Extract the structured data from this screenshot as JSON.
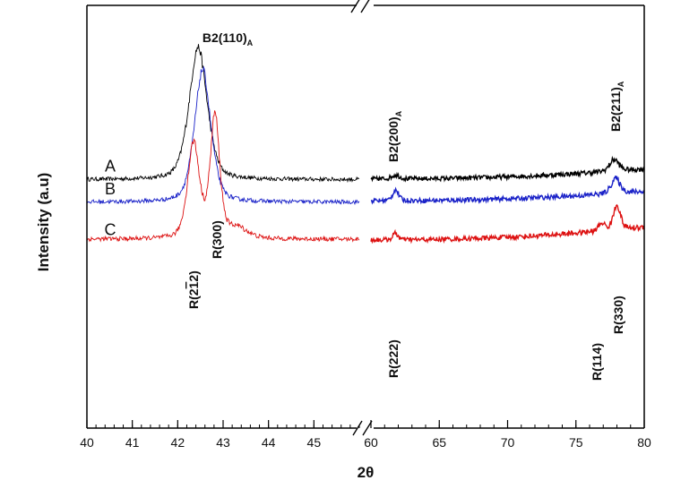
{
  "chart_data": {
    "type": "line",
    "title": "",
    "xlabel": "2θ",
    "ylabel": "Intensity (a.u)",
    "x_axis_break": true,
    "x_segments": [
      {
        "range": [
          40,
          46
        ],
        "ticks": [
          40,
          41,
          42,
          43,
          44,
          45
        ],
        "minor_step": 0.2
      },
      {
        "range": [
          60,
          80
        ],
        "ticks": [
          60,
          65,
          70,
          75,
          80
        ],
        "minor_step": 1
      }
    ],
    "y_ticks_shown": false,
    "series": [
      {
        "name": "A",
        "color": "#000000",
        "baseline": 0.0,
        "background": {
          "low_seg1": 0.03,
          "low_seg2_start": 0.035,
          "low_seg2_end": 0.11
        },
        "peaks": [
          {
            "x": 42.45,
            "height": 1.0,
            "width": 0.42
          },
          {
            "x": 61.8,
            "height": 0.03,
            "width": 0.6
          },
          {
            "x": 77.8,
            "height": 0.09,
            "width": 0.7
          }
        ]
      },
      {
        "name": "B",
        "color": "#1a22c8",
        "baseline": -0.17,
        "background": {
          "low_seg1": 0.03,
          "low_seg2_start": 0.04,
          "low_seg2_end": 0.11
        },
        "peaks": [
          {
            "x": 42.55,
            "height": 1.0,
            "width": 0.38
          },
          {
            "x": 61.8,
            "height": 0.085,
            "width": 0.45
          },
          {
            "x": 77.9,
            "height": 0.115,
            "width": 0.7
          }
        ]
      },
      {
        "name": "C",
        "color": "#dd1111",
        "baseline": -0.48,
        "background": {
          "low_seg1": 0.06,
          "low_seg2_start": 0.055,
          "low_seg2_end": 0.15
        },
        "peaks": [
          {
            "x": 42.35,
            "height": 0.72,
            "width": 0.28
          },
          {
            "x": 42.82,
            "height": 0.92,
            "width": 0.22
          },
          {
            "x": 43.3,
            "height": 0.08,
            "width": 0.5
          },
          {
            "x": 61.8,
            "height": 0.05,
            "width": 0.4
          },
          {
            "x": 76.9,
            "height": 0.06,
            "width": 0.5
          },
          {
            "x": 78.0,
            "height": 0.19,
            "width": 0.55
          }
        ]
      }
    ],
    "annotations": [
      {
        "text": "B2(110)",
        "subscript": "A",
        "x": 42.45,
        "series": "A",
        "rotated": false
      },
      {
        "text": "B2(200)",
        "subscript": "A",
        "x": 61.8,
        "series": "A",
        "rotated": true
      },
      {
        "text": "B2(211)",
        "subscript": "A",
        "x": 77.8,
        "series": "A",
        "rotated": true
      },
      {
        "text": "R(2",
        "overline_digit": "1",
        "suffix": "2)",
        "x": 42.35,
        "series": "C",
        "rotated": true
      },
      {
        "text": "R(300)",
        "x": 42.82,
        "series": "C",
        "rotated": true
      },
      {
        "text": "R(222)",
        "x": 61.8,
        "series": "C",
        "rotated": true
      },
      {
        "text": "R(114)",
        "x": 76.9,
        "series": "C",
        "rotated": true
      },
      {
        "text": "R(330)",
        "x": 78.0,
        "series": "C",
        "rotated": true
      }
    ]
  }
}
